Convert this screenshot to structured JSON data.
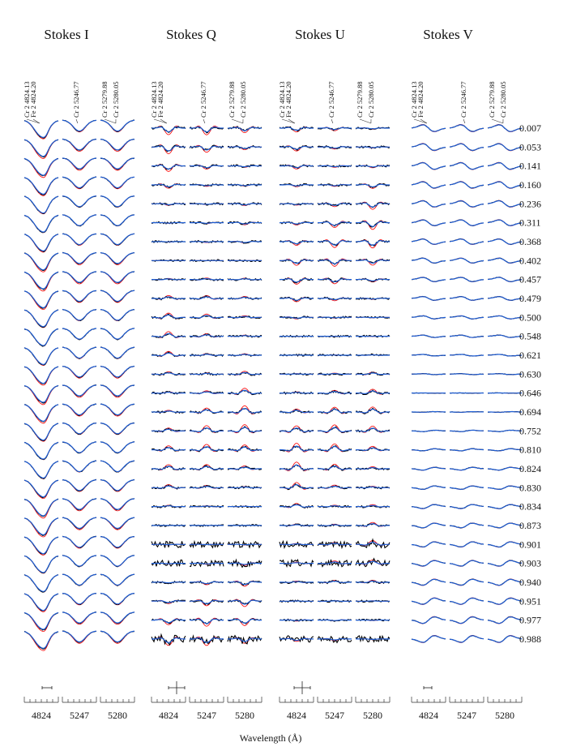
{
  "chart_data": {
    "type": "line",
    "xlabel": "Wavelength (Å)",
    "panels": [
      {
        "title": "Stokes I"
      },
      {
        "title": "Stokes Q"
      },
      {
        "title": "Stokes U"
      },
      {
        "title": "Stokes V"
      }
    ],
    "line_groups": [
      {
        "tick_label": "4824",
        "lines": [
          "Cr 2 4824.13",
          "Fe 2 4824.20"
        ]
      },
      {
        "tick_label": "5247",
        "lines": [
          "Cr 2 5246.77"
        ]
      },
      {
        "tick_label": "5280",
        "lines": [
          "Cr 2 5279.88",
          "Cr 2 5280.05"
        ]
      }
    ],
    "phases": [
      "0.007",
      "0.053",
      "0.141",
      "0.160",
      "0.236",
      "0.311",
      "0.368",
      "0.402",
      "0.457",
      "0.479",
      "0.500",
      "0.548",
      "0.621",
      "0.630",
      "0.646",
      "0.694",
      "0.752",
      "0.810",
      "0.824",
      "0.830",
      "0.834",
      "0.873",
      "0.901",
      "0.903",
      "0.940",
      "0.951",
      "0.977",
      "0.988"
    ],
    "series": [
      {
        "role": "observed",
        "color": "#000000"
      },
      {
        "role": "model-1",
        "color": "#ff0000"
      },
      {
        "role": "model-2",
        "color": "#1f5fd6"
      }
    ],
    "grid": false
  }
}
